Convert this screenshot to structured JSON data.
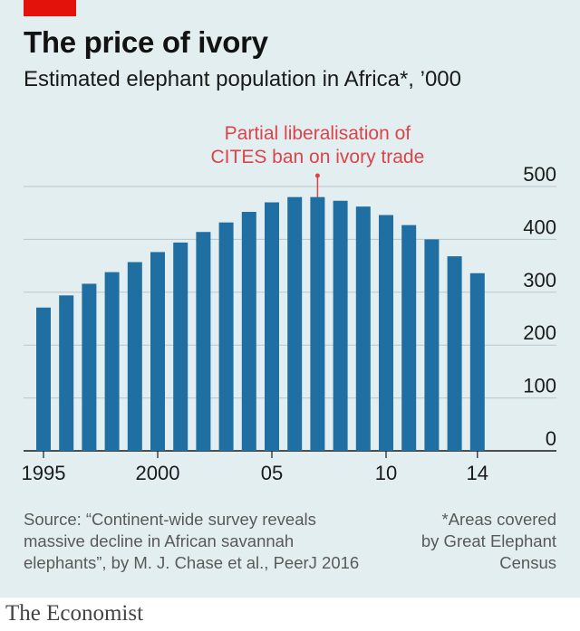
{
  "header": {
    "title": "The price of ivory",
    "subtitle": "Estimated elephant population in Africa*, ’000"
  },
  "chart_data": {
    "type": "bar",
    "x": [
      1995,
      1996,
      1997,
      1998,
      1999,
      2000,
      2001,
      2002,
      2003,
      2004,
      2005,
      2006,
      2007,
      2008,
      2009,
      2010,
      2011,
      2012,
      2013,
      2014
    ],
    "values": [
      271,
      294,
      316,
      338,
      357,
      376,
      394,
      414,
      432,
      452,
      470,
      480,
      480,
      473,
      462,
      446,
      427,
      400,
      368,
      336
    ],
    "ylim": [
      0,
      500
    ],
    "yticks": [
      0,
      100,
      200,
      300,
      400,
      500
    ],
    "ytick_labels": [
      "0",
      "100",
      "200",
      "300",
      "400",
      "500"
    ],
    "xtick_positions": [
      1995,
      2000,
      2005,
      2010,
      2014
    ],
    "xtick_labels": [
      "1995",
      "2000",
      "05",
      "10",
      "14"
    ],
    "annotation": {
      "x": 2007,
      "lines": [
        "Partial liberalisation of",
        "CITES ban on ivory trade"
      ]
    },
    "grid": true,
    "bar_color": "#1f6fa3",
    "annotation_color": "#db444b"
  },
  "footer": {
    "source_lines": [
      "Source: “Continent-wide survey reveals",
      "massive decline in African savannah",
      "elephants”, by M. J. Chase et al., PeerJ 2016"
    ],
    "note_lines": [
      "*Areas covered",
      "by Great Elephant",
      "Census"
    ]
  },
  "brand": "The Economist"
}
